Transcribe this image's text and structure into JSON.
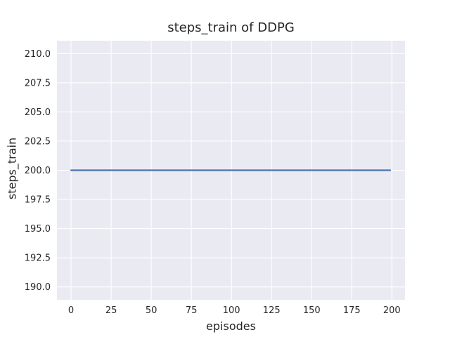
{
  "chart_data": {
    "type": "line",
    "title": "steps_train of DDPG",
    "xlabel": "episodes",
    "ylabel": "steps_train",
    "x_ticks": [
      "0",
      "25",
      "50",
      "75",
      "100",
      "125",
      "150",
      "175",
      "200"
    ],
    "x_tick_values": [
      0,
      25,
      50,
      75,
      100,
      125,
      150,
      175,
      200
    ],
    "y_ticks": [
      "190.0",
      "192.5",
      "195.0",
      "197.5",
      "200.0",
      "202.5",
      "205.0",
      "207.5",
      "210.0"
    ],
    "y_tick_values": [
      190.0,
      192.5,
      195.0,
      197.5,
      200.0,
      202.5,
      205.0,
      207.5,
      210.0
    ],
    "xlim": [
      -8.8,
      208.2
    ],
    "ylim": [
      188.9,
      211.1
    ],
    "grid": true,
    "style": {
      "plot_background": "#EAEAF2",
      "grid_color": "#FFFFFF",
      "text_color": "#262626",
      "line_width": 2.2
    },
    "series": [
      {
        "name": "steps_train",
        "color": "#4C72B0",
        "x": [
          0,
          199
        ],
        "y": [
          200,
          200
        ]
      }
    ]
  }
}
